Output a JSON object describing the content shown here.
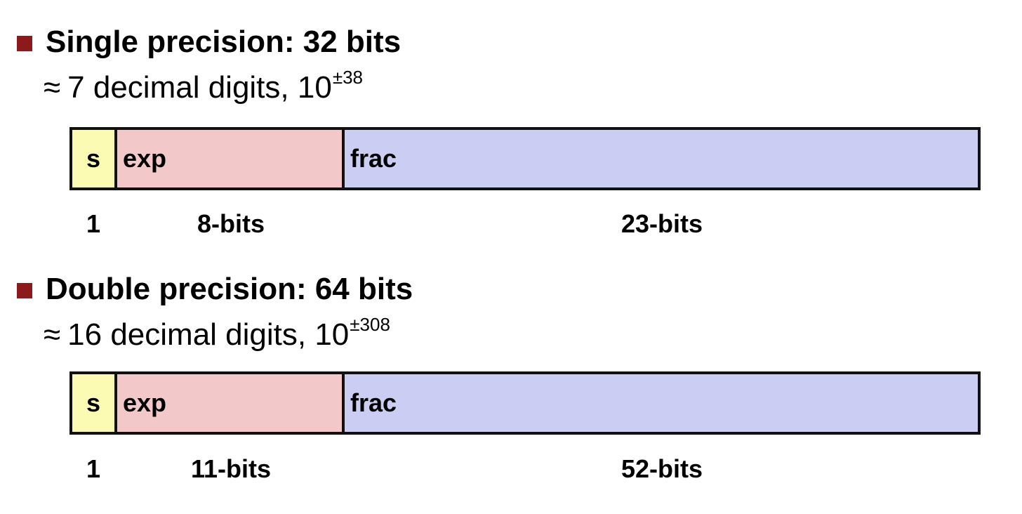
{
  "colors": {
    "bullet": "#8b1a1a",
    "sign_field": "#fbfbb4",
    "exp_field": "#f2c8c8",
    "frac_field": "#cbcdf2",
    "border": "#111111"
  },
  "single": {
    "heading": "Single precision: 32 bits",
    "approx_symbol": "≈",
    "digits_text": "7 decimal digits, 10",
    "exponent_sup": "±38",
    "fields": {
      "sign_label": "s",
      "exp_label": "exp",
      "frac_label": "frac"
    },
    "bit_counts": {
      "sign": "1",
      "exp": "8-bits",
      "frac": "23-bits"
    }
  },
  "double": {
    "heading": "Double precision: 64 bits",
    "approx_symbol": "≈",
    "digits_text": "16 decimal digits, 10",
    "exponent_sup": "±308",
    "fields": {
      "sign_label": "s",
      "exp_label": "exp",
      "frac_label": "frac"
    },
    "bit_counts": {
      "sign": "1",
      "exp": "11-bits",
      "frac": "52-bits"
    }
  }
}
